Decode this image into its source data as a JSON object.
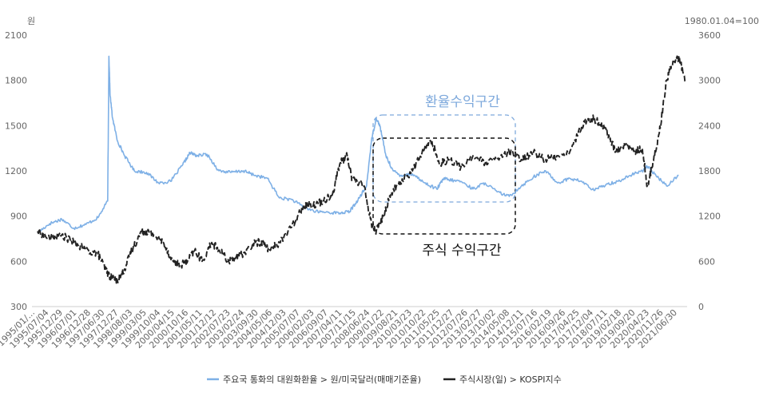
{
  "chart_data": {
    "type": "line",
    "title": "",
    "left_unit": "원",
    "right_unit": "1980.01.04=100",
    "left_axis": {
      "ylim": [
        300,
        2100
      ],
      "ticks": [
        "2100",
        "1800",
        "1500",
        "1200",
        "900",
        "600",
        "300"
      ]
    },
    "right_axis": {
      "ylim": [
        0,
        3600
      ],
      "ticks": [
        "3600",
        "3000",
        "2400",
        "1800",
        "1200",
        "600",
        "0"
      ]
    },
    "x_tick_labels": [
      "1995/01/...",
      "1995/07/04",
      "1995/12/29",
      "1996/07/01",
      "1996/12/28",
      "1997/06/30",
      "1997/12/27",
      "1998/08/03",
      "1999/03/05",
      "1999/10/04",
      "2000/04/15",
      "2000/10/16",
      "2001/05/11",
      "2001/12/12",
      "2002/07/23",
      "2003/02/24",
      "2003/09/30",
      "2004/05/06",
      "2004/12/03",
      "2005/07/07",
      "2006/02/03",
      "2006/09/07",
      "2007/04/11",
      "2007/11/15",
      "2008/06/24",
      "2009/01/22",
      "2009/08/21",
      "2010/03/23",
      "2010/10/22",
      "2011/05/25",
      "2011/12/27",
      "2012/07/26",
      "2013/02/27",
      "2013/10/02",
      "2014/05/08",
      "2014/12/11",
      "2015/07/16",
      "2016/02/19",
      "2016/09/26",
      "2017/04/25",
      "2017/12/04",
      "2018/07/11",
      "2019/02/18",
      "2019/09/20",
      "2020/04/23",
      "2020/11/26",
      "2021/06/30"
    ],
    "series": [
      {
        "name": "주요국 통화의 대원화환율 > 원/미국달러(매매기준율)",
        "axis": "left",
        "color": "#7eb0e6",
        "x": [
          1995.0,
          1995.5,
          1996.0,
          1996.5,
          1997.0,
          1997.5,
          1997.9,
          1997.95,
          1998.0,
          1998.1,
          1998.3,
          1998.6,
          1999.0,
          1999.5,
          2000.0,
          2000.5,
          2001.0,
          2001.3,
          2001.6,
          2002.0,
          2002.5,
          2003.0,
          2003.5,
          2004.0,
          2004.5,
          2005.0,
          2005.5,
          2006.0,
          2006.5,
          2007.0,
          2007.5,
          2007.9,
          2008.3,
          2008.6,
          2008.8,
          2009.0,
          2009.15,
          2009.4,
          2009.7,
          2010.0,
          2010.5,
          2011.0,
          2011.5,
          2011.8,
          2012.0,
          2012.5,
          2013.0,
          2013.5,
          2014.0,
          2014.5,
          2015.0,
          2015.5,
          2016.0,
          2016.5,
          2017.0,
          2017.5,
          2018.0,
          2018.5,
          2019.0,
          2019.5,
          2020.0,
          2020.2,
          2020.5,
          2021.0,
          2021.5
        ],
        "y": [
          790,
          850,
          880,
          820,
          845,
          890,
          1000,
          1960,
          1700,
          1550,
          1400,
          1300,
          1200,
          1190,
          1120,
          1130,
          1240,
          1320,
          1300,
          1310,
          1200,
          1190,
          1200,
          1170,
          1150,
          1020,
          1010,
          960,
          930,
          925,
          920,
          930,
          1020,
          1100,
          1400,
          1550,
          1500,
          1300,
          1200,
          1170,
          1180,
          1120,
          1080,
          1150,
          1140,
          1130,
          1080,
          1120,
          1060,
          1030,
          1100,
          1160,
          1200,
          1120,
          1150,
          1130,
          1070,
          1110,
          1130,
          1170,
          1200,
          1230,
          1180,
          1100,
          1170
        ]
      },
      {
        "name": "주식시장(일) > KOSPI지수",
        "axis": "right",
        "color": "#222222",
        "x": [
          1995.0,
          1995.5,
          1996.0,
          1996.5,
          1997.0,
          1997.5,
          1997.8,
          1998.0,
          1998.3,
          1998.6,
          1998.9,
          1999.3,
          1999.5,
          1999.8,
          2000.2,
          2000.6,
          2000.9,
          2001.2,
          2001.5,
          2001.8,
          2002.2,
          2002.5,
          2002.9,
          2003.2,
          2003.5,
          2004.0,
          2004.3,
          2004.6,
          2005.0,
          2005.5,
          2006.0,
          2006.4,
          2006.8,
          2007.2,
          2007.5,
          2007.8,
          2008.0,
          2008.5,
          2008.8,
          2009.0,
          2009.3,
          2009.6,
          2010.0,
          2010.5,
          2011.0,
          2011.3,
          2011.6,
          2012.0,
          2012.5,
          2013.0,
          2013.5,
          2014.0,
          2014.5,
          2015.0,
          2015.5,
          2016.0,
          2016.5,
          2017.0,
          2017.5,
          2017.9,
          2018.2,
          2018.5,
          2018.9,
          2019.3,
          2019.7,
          2020.0,
          2020.2,
          2020.4,
          2020.7,
          2021.0,
          2021.2,
          2021.5,
          2021.8
        ],
        "y": [
          1000,
          900,
          950,
          850,
          750,
          700,
          500,
          400,
          350,
          500,
          750,
          1000,
          1000,
          950,
          850,
          600,
          550,
          600,
          750,
          600,
          850,
          750,
          600,
          650,
          700,
          850,
          850,
          750,
          850,
          1050,
          1350,
          1350,
          1400,
          1500,
          1900,
          2000,
          1700,
          1600,
          1100,
          1000,
          1200,
          1500,
          1650,
          1800,
          2100,
          2200,
          1900,
          1950,
          1850,
          2000,
          1900,
          1950,
          2050,
          1950,
          2050,
          1950,
          2000,
          2050,
          2400,
          2500,
          2450,
          2350,
          2050,
          2150,
          2050,
          2100,
          1600,
          1850,
          2300,
          3000,
          3200,
          3300,
          3000
        ]
      }
    ],
    "annotations": {
      "fx_zone": "환율수익구간",
      "stock_zone": "주식 수익구간"
    },
    "legend": {
      "placement": "bottom"
    },
    "grid": false
  }
}
